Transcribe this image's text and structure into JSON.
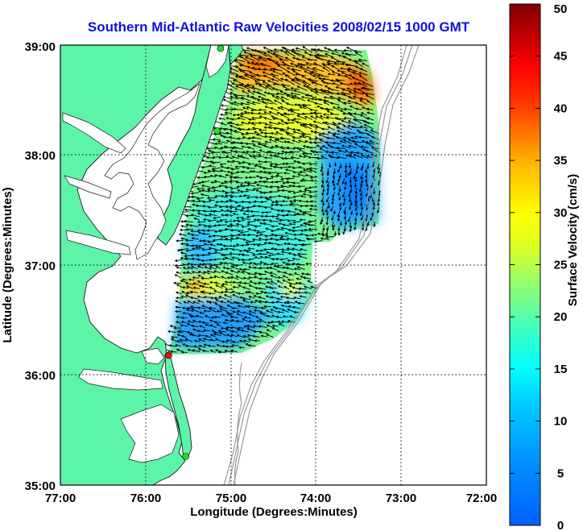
{
  "title": "Southern Mid-Atlantic Raw Velocities 2008/02/15 1000 GMT",
  "xaxis": {
    "label": "Longitude (Degrees:Minutes)",
    "range": [
      -77,
      -72
    ],
    "ticks": [
      {
        "value": -77,
        "label": "77:00"
      },
      {
        "value": -76,
        "label": "76:00"
      },
      {
        "value": -75,
        "label": "75:00"
      },
      {
        "value": -74,
        "label": "74:00"
      },
      {
        "value": -73,
        "label": "73:00"
      },
      {
        "value": -72,
        "label": "72:00"
      }
    ]
  },
  "yaxis": {
    "label": "Latitude (Degrees:Minutes)",
    "range": [
      35,
      39
    ],
    "ticks": [
      {
        "value": 39,
        "label": "39:00"
      },
      {
        "value": 38,
        "label": "38:00"
      },
      {
        "value": 37,
        "label": "37:00"
      },
      {
        "value": 36,
        "label": "36:00"
      },
      {
        "value": 35,
        "label": "35:00"
      }
    ]
  },
  "colorbar": {
    "label": "Surface Velocity (cm/s)",
    "range": [
      0,
      50
    ],
    "ticks": [
      "0",
      "5",
      "10",
      "15",
      "20",
      "25",
      "30",
      "35",
      "40",
      "45",
      "50"
    ]
  },
  "grid": true,
  "colors": {
    "land": "#5cf5a8",
    "water": "#ffffff",
    "title": "#1010e0",
    "bathymetry": "#9a9a9a"
  },
  "stations": [
    {
      "lon": -75.12,
      "lat": 38.97,
      "color": "#22dd22"
    },
    {
      "lon": -75.16,
      "lat": 38.22,
      "color": "#22dd22"
    },
    {
      "lon": -75.73,
      "lat": 36.18,
      "color": "#ee1111"
    },
    {
      "lon": -75.53,
      "lat": 35.26,
      "color": "#22dd22"
    }
  ],
  "field_regions": [
    {
      "name": "northern",
      "speed_cm_s": 30,
      "lon": [
        -75.0,
        -73.3
      ],
      "lat": [
        38.35,
        38.95
      ]
    },
    {
      "name": "central",
      "speed_cm_s": 20,
      "lon": [
        -75.5,
        -74.3
      ],
      "lat": [
        37.0,
        38.3
      ]
    },
    {
      "name": "eastern",
      "speed_cm_s": 9,
      "lon": [
        -74.3,
        -73.3
      ],
      "lat": [
        37.3,
        38.2
      ]
    },
    {
      "name": "southern",
      "speed_cm_s": 13,
      "lon": [
        -75.6,
        -74.0
      ],
      "lat": [
        36.2,
        37.0
      ]
    }
  ]
}
